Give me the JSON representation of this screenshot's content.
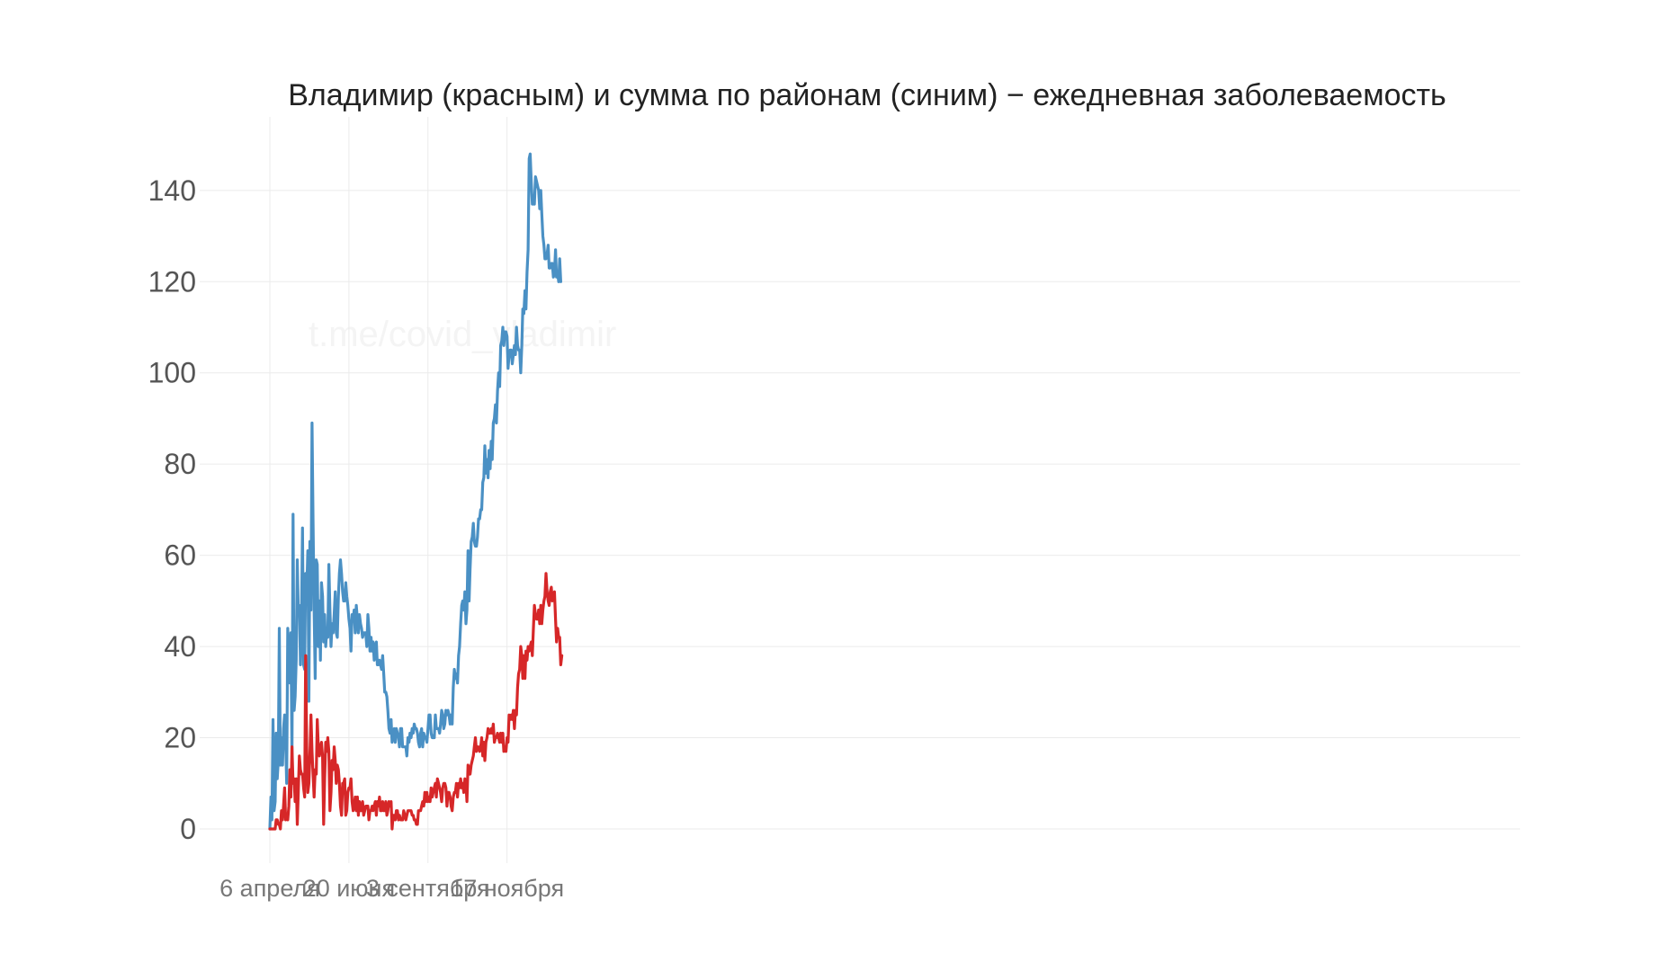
{
  "chart_data": {
    "type": "line",
    "title": "Владимир (красным) и сумма по районам (синим) − ежедневная заболеваемость",
    "watermark": "t.me/covid_vladimir",
    "xlabel": "",
    "ylabel": "",
    "ylim": [
      -7,
      155
    ],
    "yticks": [
      0,
      20,
      40,
      60,
      80,
      100,
      120,
      140
    ],
    "xticks": [
      {
        "day": 0,
        "label": "6 апреля"
      },
      {
        "day": 75,
        "label": "20 июня"
      },
      {
        "day": 150,
        "label": "3 сентября"
      },
      {
        "day": 225,
        "label": "17 ноября"
      }
    ],
    "x_start": "6 апреля",
    "x_unit": "day",
    "legend": "none (colors described in title)",
    "series": [
      {
        "name": "сумма по районам (синим)",
        "color": "#4a90c4",
        "values": [
          0,
          7,
          2,
          24,
          4,
          6,
          21,
          11,
          15,
          44,
          14,
          20,
          14,
          22,
          25,
          19,
          10,
          44,
          37,
          32,
          43,
          16,
          69,
          26,
          29,
          37,
          59,
          48,
          49,
          36,
          47,
          66,
          36,
          35,
          56,
          52,
          61,
          28,
          63,
          48,
          89,
          68,
          48,
          33,
          59,
          58,
          40,
          50,
          37,
          54,
          51,
          41,
          47,
          40,
          44,
          42,
          58,
          48,
          40,
          45,
          43,
          47,
          52,
          43,
          42,
          51,
          56,
          59,
          56,
          52,
          50,
          50,
          54,
          51,
          49,
          46,
          44,
          39,
          47,
          46,
          48,
          43,
          49,
          46,
          43,
          47,
          45,
          44,
          42,
          43,
          43,
          43,
          40,
          47,
          44,
          39,
          42,
          39,
          41,
          37,
          40,
          41,
          36,
          36,
          37,
          36,
          35,
          38,
          34,
          30,
          30,
          29,
          26,
          22,
          21,
          24,
          19,
          21,
          22,
          19,
          22,
          21,
          20,
          18,
          22,
          22,
          18,
          18,
          18,
          18,
          16,
          20,
          19,
          21,
          20,
          22,
          21,
          23,
          22,
          22,
          21,
          19,
          18,
          21,
          22,
          18,
          21,
          20,
          20,
          19,
          22,
          25,
          25,
          21,
          20,
          20,
          20,
          25,
          22,
          22,
          22,
          21,
          23,
          26,
          25,
          22,
          23,
          26,
          25,
          26,
          25,
          23,
          25,
          23,
          31,
          35,
          33,
          34,
          32,
          38,
          40,
          45,
          49,
          50,
          48,
          52,
          45,
          48,
          61,
          50,
          57,
          63,
          64,
          67,
          63,
          62,
          62,
          64,
          68,
          68,
          70,
          70,
          76,
          77,
          84,
          78,
          81,
          77,
          83,
          79,
          85,
          81,
          89,
          90,
          93,
          89,
          96,
          100,
          97,
          106,
          107,
          110,
          106,
          109,
          109,
          108,
          101,
          104,
          105,
          105,
          102,
          104,
          106,
          104,
          110,
          106,
          105,
          105,
          100,
          106,
          114,
          113,
          118,
          114,
          122,
          127,
          147,
          148,
          142,
          137,
          137,
          137,
          143,
          142,
          141,
          140,
          136,
          140,
          135,
          130,
          128,
          125,
          125,
          126,
          128,
          123,
          123,
          124,
          124,
          121,
          122,
          127,
          121,
          122,
          120,
          125,
          120
        ]
      },
      {
        "name": "Владимир (красным)",
        "color": "#d62728",
        "values": [
          0,
          0,
          0,
          0,
          0,
          0,
          2,
          2,
          1,
          1,
          0,
          4,
          2,
          5,
          9,
          2,
          3,
          2,
          5,
          13,
          7,
          18,
          10,
          11,
          6,
          11,
          1,
          8,
          16,
          13,
          12,
          12,
          9,
          7,
          38,
          18,
          8,
          10,
          16,
          25,
          17,
          12,
          7,
          13,
          12,
          24,
          18,
          16,
          18,
          19,
          16,
          1,
          11,
          19,
          17,
          20,
          17,
          4,
          8,
          15,
          13,
          18,
          15,
          10,
          14,
          13,
          10,
          5,
          3,
          10,
          10,
          11,
          3,
          4,
          8,
          9,
          9,
          11,
          6,
          4,
          5,
          7,
          4,
          7,
          3,
          6,
          4,
          4,
          6,
          3,
          4,
          5,
          5,
          5,
          2,
          4,
          4,
          5,
          4,
          5,
          6,
          3,
          6,
          5,
          7,
          4,
          4,
          6,
          4,
          4,
          6,
          3,
          4,
          6,
          5,
          6,
          0,
          3,
          3,
          2,
          4,
          4,
          2,
          3,
          2,
          2,
          2,
          4,
          3,
          2,
          3,
          4,
          4,
          4,
          4,
          3,
          3,
          2,
          2,
          1,
          1,
          4,
          4,
          4,
          5,
          6,
          5,
          8,
          6,
          8,
          6,
          7,
          6,
          9,
          7,
          8,
          9,
          10,
          7,
          11,
          10,
          9,
          8,
          6,
          9,
          10,
          10,
          9,
          5,
          8,
          8,
          7,
          5,
          4,
          7,
          8,
          8,
          10,
          7,
          10,
          9,
          11,
          9,
          10,
          8,
          11,
          10,
          6,
          14,
          13,
          12,
          14,
          15,
          16,
          18,
          20,
          17,
          18,
          18,
          17,
          18,
          20,
          16,
          19,
          15,
          19,
          20,
          22,
          21,
          21,
          22,
          21,
          23,
          19,
          20,
          20,
          21,
          20,
          19,
          21,
          19,
          21,
          17,
          18,
          17,
          20,
          19,
          25,
          24,
          25,
          24,
          26,
          22,
          26,
          25,
          31,
          34,
          35,
          40,
          38,
          33,
          38,
          33,
          39,
          37,
          40,
          39,
          40,
          41,
          38,
          44,
          49,
          47,
          46,
          46,
          48,
          45,
          49,
          45,
          48,
          50,
          51,
          56,
          52,
          50,
          49,
          52,
          53,
          50,
          51,
          52,
          46,
          41,
          44,
          42,
          42,
          36,
          38
        ]
      }
    ]
  }
}
